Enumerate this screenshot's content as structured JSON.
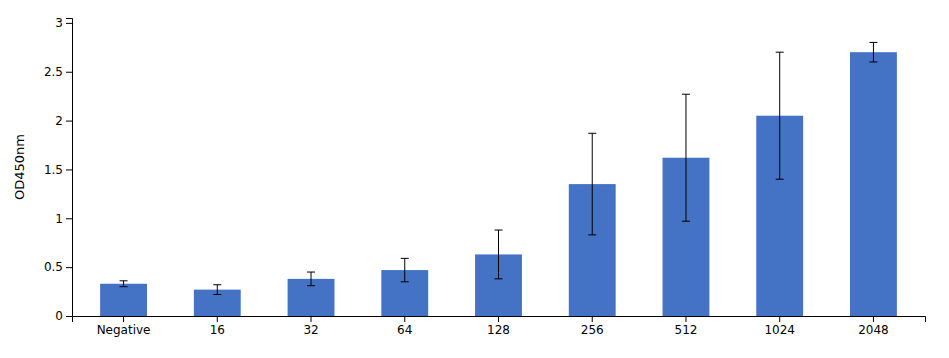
{
  "chart_data": {
    "type": "bar",
    "categories": [
      "Negative",
      "16",
      "32",
      "64",
      "128",
      "256",
      "512",
      "1024",
      "2048"
    ],
    "values": [
      0.33,
      0.27,
      0.38,
      0.47,
      0.63,
      1.35,
      1.62,
      2.05,
      2.7
    ],
    "errors": [
      0.03,
      0.05,
      0.07,
      0.12,
      0.25,
      0.52,
      0.65,
      0.65,
      0.1
    ],
    "color": "#4472C4",
    "ylabel": "OD450nm",
    "ylim": [
      0,
      3.05
    ],
    "yticks": [
      0,
      0.5,
      1.0,
      1.5,
      2.0,
      2.5,
      3.0
    ],
    "grid": false
  }
}
